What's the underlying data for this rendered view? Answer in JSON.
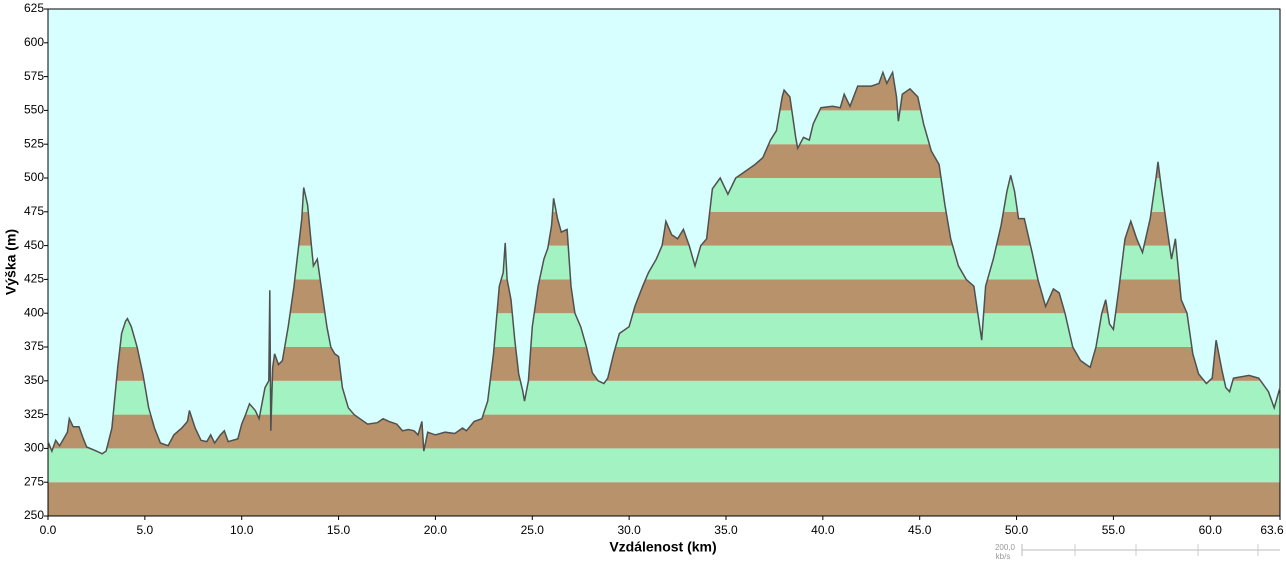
{
  "chart_data": {
    "type": "elevation-profile",
    "x_label": "Vzdálenost  (km)",
    "y_label": "Výška (m)",
    "xlim": [
      0,
      63.6
    ],
    "ylim": [
      250,
      625
    ],
    "xticks": [
      {
        "value": 0,
        "label": "0.0"
      },
      {
        "value": 5,
        "label": "5.0"
      },
      {
        "value": 10,
        "label": "10.0"
      },
      {
        "value": 15,
        "label": "15.0"
      },
      {
        "value": 20,
        "label": "20.0"
      },
      {
        "value": 25,
        "label": "25.0"
      },
      {
        "value": 30,
        "label": "30.0"
      },
      {
        "value": 35,
        "label": "35.0"
      },
      {
        "value": 40,
        "label": "40.0"
      },
      {
        "value": 45,
        "label": "45.0"
      },
      {
        "value": 50,
        "label": "50.0"
      },
      {
        "value": 55,
        "label": "55.0"
      },
      {
        "value": 60,
        "label": "60.0"
      },
      {
        "value": 63.6,
        "label": "63.6"
      }
    ],
    "yticks": [
      250,
      275,
      300,
      325,
      350,
      375,
      400,
      425,
      450,
      475,
      500,
      525,
      550,
      575,
      600,
      625
    ],
    "band_colors": [
      "#b8926a",
      "#a2f2c2"
    ],
    "line_color": "#505050",
    "background": "#d8ffff",
    "x": [
      0,
      0.2,
      0.4,
      0.6,
      1.0,
      1.1,
      1.3,
      1.6,
      1.8,
      2.0,
      2.5,
      2.8,
      3.0,
      3.3,
      3.6,
      3.8,
      4.0,
      4.1,
      4.3,
      4.6,
      4.9,
      5.2,
      5.5,
      5.8,
      6.2,
      6.5,
      6.9,
      7.2,
      7.3,
      7.6,
      7.9,
      8.2,
      8.4,
      8.6,
      8.9,
      9.1,
      9.3,
      9.8,
      10.0,
      10.2,
      10.4,
      10.7,
      10.9,
      11.2,
      11.4,
      11.45,
      11.5,
      11.6,
      11.7,
      11.9,
      12.1,
      12.4,
      12.7,
      12.9,
      13.1,
      13.2,
      13.4,
      13.6,
      13.7,
      13.9,
      14.1,
      14.4,
      14.6,
      14.8,
      15.0,
      15.2,
      15.5,
      15.8,
      16.1,
      16.5,
      17.0,
      17.3,
      17.6,
      18.0,
      18.3,
      18.6,
      18.9,
      19.1,
      19.3,
      19.4,
      19.6,
      20.0,
      20.5,
      21.0,
      21.4,
      21.6,
      22.0,
      22.4,
      22.7,
      23.0,
      23.3,
      23.5,
      23.6,
      23.7,
      23.9,
      24.1,
      24.3,
      24.5,
      24.6,
      24.8,
      25.0,
      25.3,
      25.6,
      25.8,
      26.0,
      26.1,
      26.3,
      26.5,
      26.8,
      27.0,
      27.2,
      27.5,
      27.8,
      28.1,
      28.4,
      28.7,
      28.9,
      29.2,
      29.5,
      30.0,
      30.3,
      30.7,
      31.0,
      31.4,
      31.7,
      31.9,
      32.2,
      32.5,
      32.8,
      33.1,
      33.4,
      33.7,
      34.0,
      34.3,
      34.7,
      35.1,
      35.5,
      36.0,
      36.5,
      36.9,
      37.3,
      37.6,
      37.9,
      38.0,
      38.3,
      38.6,
      38.7,
      39.0,
      39.3,
      39.5,
      39.9,
      40.5,
      40.9,
      41.1,
      41.4,
      41.8,
      42.5,
      42.9,
      43.1,
      43.3,
      43.6,
      43.8,
      43.9,
      44.1,
      44.5,
      44.9,
      45.2,
      45.6,
      46.0,
      46.3,
      46.6,
      47.0,
      47.4,
      47.8,
      48.0,
      48.2,
      48.4,
      48.8,
      49.2,
      49.5,
      49.7,
      49.9,
      50.1,
      50.4,
      50.8,
      51.1,
      51.5,
      51.9,
      52.2,
      52.5,
      52.9,
      53.3,
      53.6,
      53.8,
      54.1,
      54.4,
      54.6,
      54.8,
      55.0,
      55.3,
      55.6,
      55.9,
      56.2,
      56.5,
      56.9,
      57.2,
      57.3,
      57.5,
      57.8,
      58.0,
      58.2,
      58.5,
      58.8,
      59.1,
      59.4,
      59.8,
      60.1,
      60.3,
      60.6,
      60.8,
      61.0,
      61.2,
      62.0,
      62.5,
      63.0,
      63.3,
      63.6
    ],
    "values": [
      305,
      298,
      306,
      302,
      312,
      322,
      316,
      316,
      308,
      301,
      298,
      296,
      298,
      315,
      360,
      385,
      394,
      396,
      390,
      375,
      355,
      330,
      315,
      304,
      302,
      310,
      315,
      320,
      328,
      315,
      306,
      305,
      310,
      304,
      310,
      313,
      305,
      307,
      318,
      325,
      333,
      328,
      322,
      345,
      350,
      417,
      313,
      360,
      370,
      362,
      365,
      390,
      420,
      445,
      470,
      493,
      480,
      450,
      435,
      440,
      420,
      390,
      375,
      370,
      368,
      345,
      330,
      325,
      322,
      318,
      319,
      322,
      320,
      318,
      313,
      314,
      313,
      310,
      320,
      298,
      312,
      310,
      312,
      311,
      315,
      313,
      320,
      322,
      335,
      370,
      420,
      430,
      452,
      425,
      410,
      380,
      355,
      343,
      335,
      350,
      390,
      420,
      440,
      448,
      465,
      485,
      470,
      460,
      462,
      420,
      400,
      390,
      375,
      356,
      350,
      348,
      352,
      370,
      385,
      390,
      405,
      420,
      430,
      440,
      450,
      468,
      458,
      455,
      462,
      450,
      435,
      450,
      455,
      492,
      500,
      488,
      500,
      505,
      510,
      515,
      528,
      535,
      560,
      565,
      560,
      530,
      522,
      530,
      528,
      540,
      552,
      553,
      552,
      562,
      553,
      568,
      568,
      570,
      578,
      570,
      578,
      560,
      542,
      562,
      566,
      560,
      540,
      520,
      510,
      480,
      455,
      435,
      425,
      420,
      400,
      380,
      420,
      440,
      465,
      490,
      502,
      490,
      470,
      470,
      445,
      425,
      405,
      418,
      415,
      400,
      375,
      365,
      362,
      360,
      375,
      400,
      410,
      392,
      388,
      420,
      455,
      468,
      455,
      445,
      470,
      500,
      512,
      490,
      460,
      440,
      455,
      410,
      400,
      370,
      355,
      348,
      352,
      380,
      358,
      345,
      342,
      352,
      354,
      352,
      342,
      330,
      345
    ]
  },
  "speed_widget": {
    "value": "200,0",
    "unit": "kb/s"
  }
}
